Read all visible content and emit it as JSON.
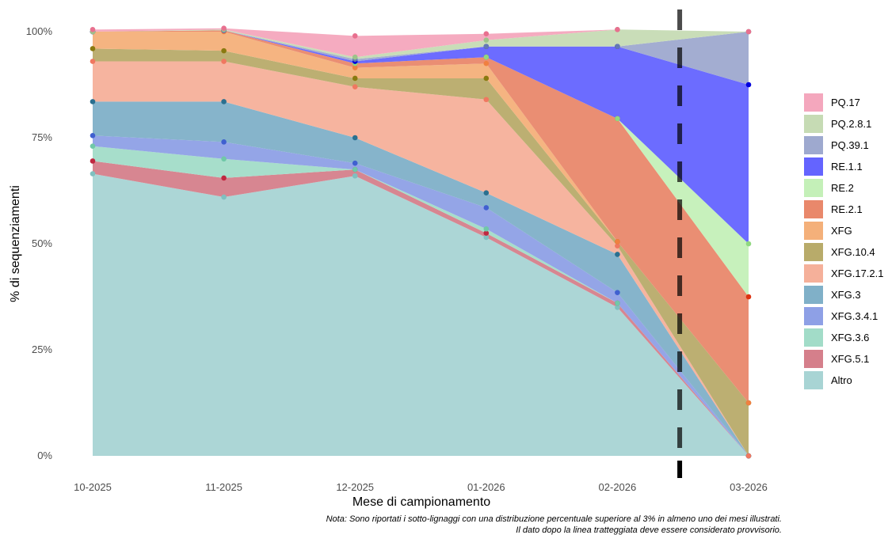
{
  "chart_data": {
    "type": "area",
    "stacked": true,
    "percent": true,
    "xlabel": "Mese di campionamento",
    "ylabel": "% di sequenziamenti",
    "categories": [
      "10-2025",
      "11-2025",
      "12-2025",
      "01-2026",
      "02-2026",
      "03-2026"
    ],
    "yticks": [
      "0%",
      "25%",
      "50%",
      "75%",
      "100%"
    ],
    "ylim": [
      0,
      100
    ],
    "grid": false,
    "legend_position": "right",
    "provisional_after": "02-2026",
    "note_lines": [
      "Nota: Sono riportati i sotto-lignaggi con una distribuzione percentuale superiore al 3% in almeno uno dei mesi illustrati.",
      "Il dato dopo la linea tratteggiata deve essere considerato provvisorio."
    ],
    "series": [
      {
        "name": "PQ.17",
        "fill": "#f4a7bd",
        "point": "#e8708f",
        "values": [
          0.5,
          0.3,
          5.0,
          1.5,
          0.0,
          0.0
        ]
      },
      {
        "name": "PQ.2.8.1",
        "fill": "#c6dbb4",
        "point": "#9dc38a",
        "values": [
          0.0,
          0.2,
          0.5,
          1.5,
          4.0,
          0.0
        ]
      },
      {
        "name": "PQ.39.1",
        "fill": "#9ea9cf",
        "point": "#6478b4",
        "values": [
          0.0,
          0.0,
          0.5,
          0.0,
          0.0,
          12.5
        ]
      },
      {
        "name": "RE.1.1",
        "fill": "#6464ff",
        "point": "#0000dd",
        "values": [
          0.0,
          0.0,
          0.5,
          2.5,
          17.0,
          37.5
        ]
      },
      {
        "name": "RE.2",
        "fill": "#c4f0b8",
        "point": "#90d880",
        "values": [
          0.0,
          0.0,
          0.0,
          0.0,
          0.0,
          12.5
        ]
      },
      {
        "name": "RE.2.1",
        "fill": "#e9886b",
        "point": "#dd3311",
        "values": [
          0.0,
          0.3,
          1.0,
          1.5,
          29.0,
          25.0
        ]
      },
      {
        "name": "XFG",
        "fill": "#f4b07a",
        "point": "#f08040",
        "values": [
          4.0,
          4.5,
          2.5,
          3.5,
          0.0,
          0.0
        ]
      },
      {
        "name": "XFG.10.4",
        "fill": "#b8ab6a",
        "point": "#8a7a10",
        "values": [
          3.0,
          2.5,
          2.0,
          5.0,
          1.0,
          12.5
        ]
      },
      {
        "name": "XFG.17.2.1",
        "fill": "#f5b09a",
        "point": "#f07860",
        "values": [
          9.5,
          9.5,
          12.0,
          22.0,
          2.0,
          0.0
        ]
      },
      {
        "name": "XFG.3",
        "fill": "#80b0c8",
        "point": "#2a7090",
        "values": [
          8.0,
          9.5,
          6.0,
          3.5,
          9.0,
          0.0
        ]
      },
      {
        "name": "XFG.3.4.1",
        "fill": "#8ea0e6",
        "point": "#4060d0",
        "values": [
          2.5,
          4.0,
          1.5,
          5.0,
          2.5,
          0.0
        ]
      },
      {
        "name": "XFG.3.6",
        "fill": "#a2dcc8",
        "point": "#70c8a8",
        "values": [
          3.5,
          4.5,
          0.0,
          1.0,
          0.0,
          0.0
        ]
      },
      {
        "name": "XFG.5.1",
        "fill": "#d57f8b",
        "point": "#c02840",
        "values": [
          3.0,
          4.5,
          1.5,
          1.0,
          1.0,
          0.0
        ]
      },
      {
        "name": "Altro",
        "fill": "#a8d4d4",
        "point": "#80c0c0",
        "values": [
          66.5,
          61.0,
          66.0,
          51.5,
          35.0,
          0.0
        ]
      }
    ]
  }
}
